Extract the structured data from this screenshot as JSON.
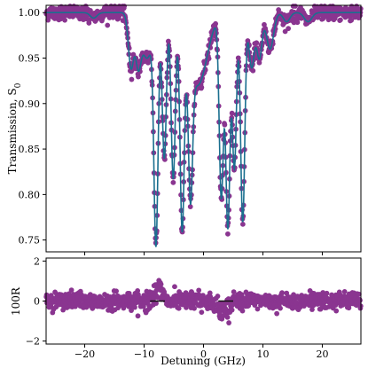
{
  "chart_data": [
    {
      "type": "scatter",
      "panel": "top",
      "ylabel": "Transmission, S",
      "ylabel_sub": "0",
      "xlim": [
        -26.5,
        26.5
      ],
      "ylim": [
        0.737,
        1.008
      ],
      "yticks": [
        0.75,
        0.8,
        0.85,
        0.9,
        0.95,
        1.0
      ],
      "ytick_labels": [
        "0.75",
        "0.80",
        "0.85",
        "0.90",
        "0.95",
        "1.00"
      ],
      "xticks": [
        -20,
        -10,
        0,
        10,
        20
      ],
      "grid": false,
      "colors": {
        "points": "#8a3590",
        "fit": "#1a6f8f"
      },
      "baseline": 1.0,
      "dips": [
        {
          "x": -12.2,
          "depth": 0.06,
          "width": 0.45
        },
        {
          "x": -11.0,
          "depth": 0.05,
          "width": 0.45
        },
        {
          "x": -8.0,
          "depth": 0.245,
          "width": 0.35
        },
        {
          "x": -6.6,
          "depth": 0.16,
          "width": 0.35
        },
        {
          "x": -5.1,
          "depth": 0.18,
          "width": 0.35
        },
        {
          "x": -3.6,
          "depth": 0.22,
          "width": 0.35
        },
        {
          "x": -2.2,
          "depth": 0.15,
          "width": 0.35
        },
        {
          "x": 3.0,
          "depth": 0.2,
          "width": 0.35
        },
        {
          "x": 4.1,
          "depth": 0.235,
          "width": 0.35
        },
        {
          "x": 5.2,
          "depth": 0.17,
          "width": 0.35
        },
        {
          "x": 6.6,
          "depth": 0.23,
          "width": 0.35
        },
        {
          "x": 8.1,
          "depth": 0.06,
          "width": 0.45
        },
        {
          "x": 9.4,
          "depth": 0.05,
          "width": 0.45
        },
        {
          "x": -9.5,
          "depth": 0.05,
          "width": 0.9
        },
        {
          "x": -1.0,
          "depth": 0.08,
          "width": 1.6
        },
        {
          "x": 11.2,
          "depth": 0.04,
          "width": 0.6
        }
      ],
      "noise_sigma": 0.004
    },
    {
      "type": "scatter",
      "panel": "bottom",
      "xlabel": "Detuning (GHz)",
      "ylabel": "100R",
      "xlim": [
        -26.5,
        26.5
      ],
      "ylim": [
        -2.15,
        2.15
      ],
      "yticks": [
        -2,
        0,
        2
      ],
      "ytick_labels": [
        "−2",
        "0",
        "2"
      ],
      "xticks": [
        -20,
        -10,
        0,
        10,
        20
      ],
      "xtick_labels": [
        "−20",
        "−10",
        "0",
        "10",
        "20"
      ],
      "grid": false,
      "colors": {
        "points": "#8a3590",
        "fit": "#111111"
      },
      "noise_sigma": 0.22
    }
  ]
}
